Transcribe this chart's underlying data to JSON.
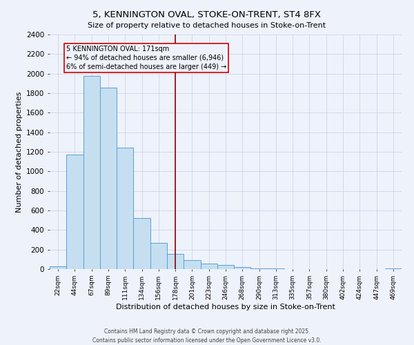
{
  "title": "5, KENNINGTON OVAL, STOKE-ON-TRENT, ST4 8FX",
  "subtitle": "Size of property relative to detached houses in Stoke-on-Trent",
  "xlabel": "Distribution of detached houses by size in Stoke-on-Trent",
  "ylabel": "Number of detached properties",
  "categories": [
    "22sqm",
    "44sqm",
    "67sqm",
    "89sqm",
    "111sqm",
    "134sqm",
    "156sqm",
    "178sqm",
    "201sqm",
    "223sqm",
    "246sqm",
    "268sqm",
    "290sqm",
    "313sqm",
    "335sqm",
    "357sqm",
    "380sqm",
    "402sqm",
    "424sqm",
    "447sqm",
    "469sqm"
  ],
  "values": [
    25,
    1170,
    1980,
    1860,
    1240,
    525,
    270,
    155,
    90,
    55,
    45,
    20,
    10,
    5,
    2,
    2,
    2,
    2,
    2,
    2,
    10
  ],
  "bar_color": "#c5dff0",
  "bar_edge_color": "#5a9fd4",
  "background_color": "#eef2fb",
  "grid_color": "#c8cfe0",
  "vline_x_index": 7,
  "vline_color": "#8b0000",
  "annotation_text": "5 KENNINGTON OVAL: 171sqm\n← 94% of detached houses are smaller (6,946)\n6% of semi-detached houses are larger (449) →",
  "annotation_box_edge": "#cc0000",
  "ylim": [
    0,
    2400
  ],
  "yticks": [
    0,
    200,
    400,
    600,
    800,
    1000,
    1200,
    1400,
    1600,
    1800,
    2000,
    2200,
    2400
  ],
  "footer_line1": "Contains HM Land Registry data © Crown copyright and database right 2025.",
  "footer_line2": "Contains public sector information licensed under the Open Government Licence v3.0."
}
